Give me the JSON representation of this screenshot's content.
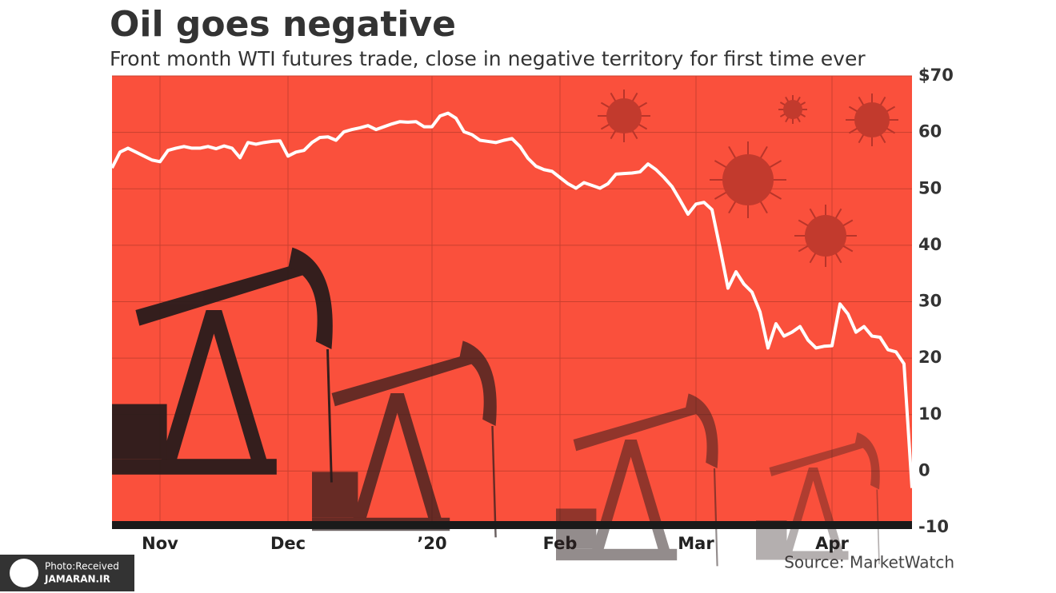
{
  "chart_data": {
    "type": "line",
    "title": "Oil goes negative",
    "subtitle": "Front month WTI futures trade, close in negative territory for first time ever",
    "source": "Source: MarketWatch",
    "watermark": [
      "Photo:Received",
      "JAMARAN.IR"
    ],
    "categories": [
      null,
      null,
      null,
      null,
      null,
      null,
      "Nov",
      null,
      null,
      null,
      null,
      null,
      null,
      null,
      null,
      null,
      null,
      null,
      null,
      null,
      null,
      null,
      "Dec",
      null,
      null,
      null,
      null,
      null,
      null,
      null,
      null,
      null,
      null,
      null,
      null,
      null,
      null,
      null,
      null,
      null,
      "’20",
      null,
      null,
      null,
      null,
      null,
      null,
      null,
      null,
      null,
      null,
      null,
      null,
      null,
      null,
      null,
      "Feb",
      null,
      null,
      null,
      null,
      null,
      null,
      null,
      null,
      null,
      null,
      null,
      null,
      null,
      null,
      null,
      null,
      "Mar",
      null,
      null,
      null,
      null,
      null,
      null,
      null,
      null,
      null,
      null,
      null,
      null,
      null,
      null,
      null,
      null,
      "Apr",
      null,
      null,
      null,
      null,
      null,
      null,
      null,
      null,
      null,
      null
    ],
    "series": [
      {
        "name": "WTI",
        "color": "#ffffff",
        "values": [
          53.7,
          56.5,
          57.2,
          56.5,
          55.8,
          55.1,
          54.8,
          56.8,
          57.2,
          57.5,
          57.2,
          57.2,
          57.5,
          57.1,
          57.6,
          57.2,
          55.5,
          58.2,
          57.9,
          58.2,
          58.4,
          58.5,
          55.8,
          56.5,
          56.8,
          58.2,
          59.1,
          59.2,
          58.6,
          60.1,
          60.5,
          60.8,
          61.2,
          60.5,
          61.0,
          61.5,
          61.9,
          61.8,
          61.9,
          61.0,
          61.0,
          62.9,
          63.4,
          62.5,
          60.1,
          59.6,
          58.6,
          58.4,
          58.2,
          58.6,
          58.9,
          57.5,
          55.4,
          54.0,
          53.4,
          53.1,
          52.0,
          50.9,
          50.1,
          51.1,
          50.6,
          50.1,
          50.9,
          52.6,
          52.7,
          52.8,
          53.0,
          54.4,
          53.4,
          52.0,
          50.4,
          48.0,
          45.5,
          47.3,
          47.6,
          46.3,
          39.5,
          32.4,
          35.3,
          33.1,
          31.7,
          28.2,
          21.8,
          26.1,
          23.9,
          24.6,
          25.6,
          23.2,
          21.8,
          22.1,
          22.2,
          29.6,
          27.8,
          24.6,
          25.6,
          23.9,
          23.7,
          21.5,
          21.1,
          19.0,
          -3.0
        ]
      }
    ],
    "ylim": [
      -10,
      70
    ],
    "yticks": [
      -10,
      0,
      10,
      20,
      30,
      40,
      50,
      60,
      {
        "value": 70,
        "label": "$70"
      }
    ],
    "grid": true,
    "plot_color": "#fa503c"
  }
}
